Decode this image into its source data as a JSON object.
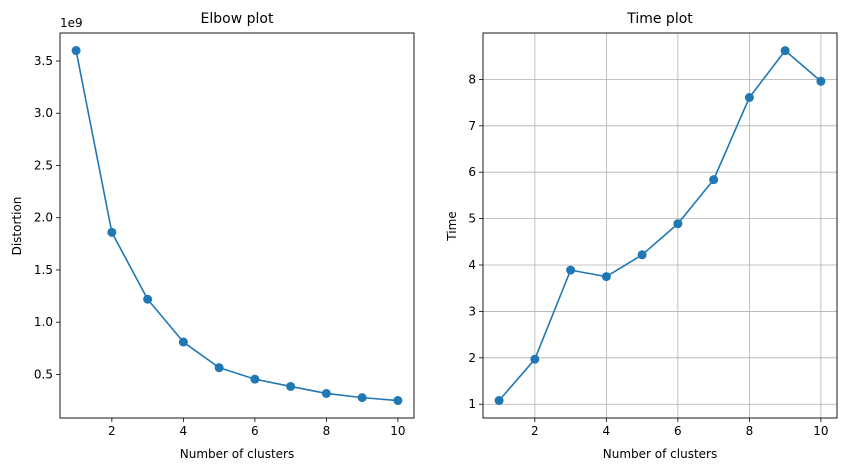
{
  "chart_data": [
    {
      "type": "line",
      "title": "Elbow plot",
      "xlabel": "Number of clusters",
      "ylabel": "Distortion",
      "offset_label": "1e9",
      "x": [
        1,
        2,
        3,
        4,
        5,
        6,
        7,
        8,
        9,
        10
      ],
      "series": [
        {
          "values": [
            3.6,
            1.86,
            1.22,
            0.81,
            0.565,
            0.455,
            0.385,
            0.318,
            0.278,
            0.25
          ]
        }
      ],
      "xlim": [
        0.55,
        10.45
      ],
      "ylim": [
        0.083,
        3.768
      ],
      "xticks": [
        2,
        4,
        6,
        8,
        10
      ],
      "xtick_labels": [
        "2",
        "4",
        "6",
        "8",
        "10"
      ],
      "yticks": [
        0.5,
        1.0,
        1.5,
        2.0,
        2.5,
        3.0,
        3.5
      ],
      "ytick_labels": [
        "0.5",
        "1.0",
        "1.5",
        "2.0",
        "2.5",
        "3.0",
        "3.5"
      ],
      "grid": false,
      "color": "#1f77b4"
    },
    {
      "type": "line",
      "title": "Time plot",
      "xlabel": "Number of clusters",
      "ylabel": "Time",
      "x": [
        1,
        2,
        3,
        4,
        5,
        6,
        7,
        8,
        9,
        10
      ],
      "series": [
        {
          "values": [
            1.08,
            1.97,
            3.89,
            3.75,
            4.22,
            4.89,
            5.84,
            7.61,
            8.62,
            7.96
          ]
        }
      ],
      "xlim": [
        0.55,
        10.45
      ],
      "ylim": [
        0.703,
        9.0
      ],
      "xticks": [
        2,
        4,
        6,
        8,
        10
      ],
      "xtick_labels": [
        "2",
        "4",
        "6",
        "8",
        "10"
      ],
      "yticks": [
        1,
        2,
        3,
        4,
        5,
        6,
        7,
        8
      ],
      "ytick_labels": [
        "1",
        "2",
        "3",
        "4",
        "5",
        "6",
        "7",
        "8"
      ],
      "grid": true,
      "color": "#1f77b4"
    }
  ]
}
